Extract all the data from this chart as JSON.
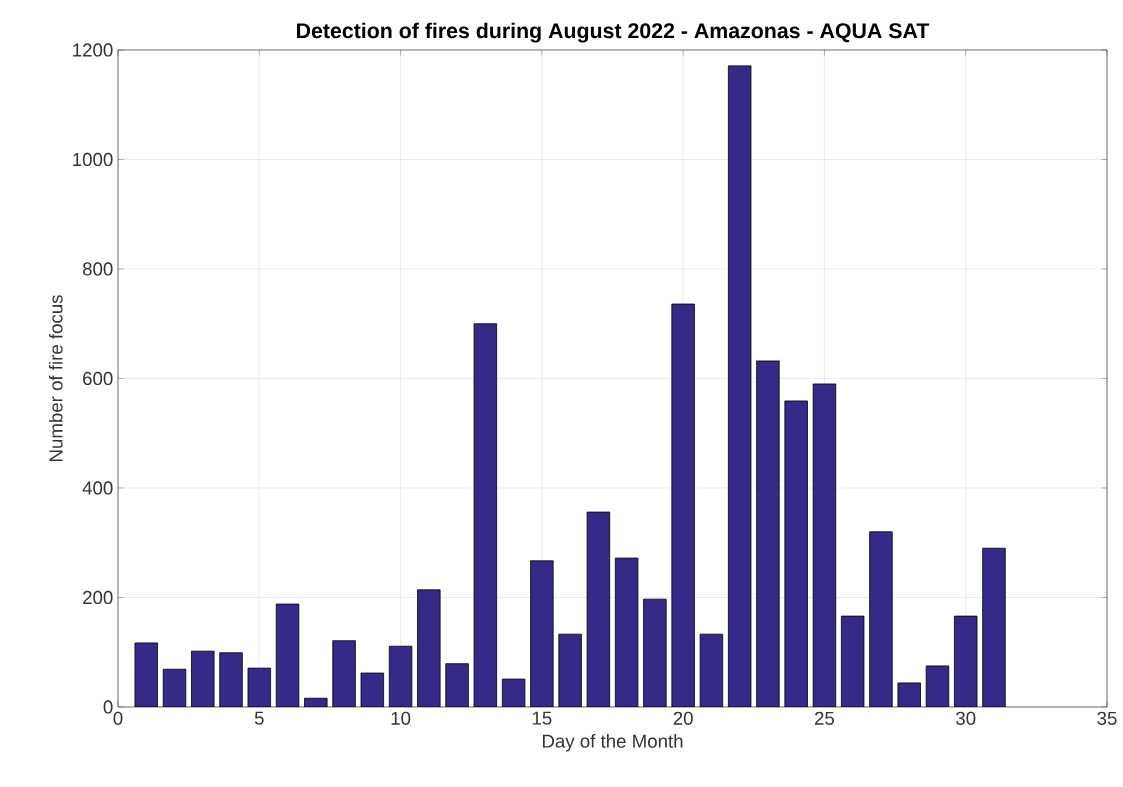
{
  "chart_data": {
    "type": "bar",
    "title": "Detection of fires during August 2022 - Amazonas - AQUA SAT",
    "xlabel": "Day of the Month",
    "ylabel": "Number of fire focus",
    "x": [
      1,
      2,
      3,
      4,
      5,
      6,
      7,
      8,
      9,
      10,
      11,
      12,
      13,
      14,
      15,
      16,
      17,
      18,
      19,
      20,
      21,
      22,
      23,
      24,
      25,
      26,
      27,
      28,
      29,
      30,
      31
    ],
    "values": [
      117,
      69,
      102,
      99,
      71,
      188,
      16,
      121,
      62,
      111,
      214,
      79,
      700,
      51,
      267,
      133,
      356,
      272,
      197,
      736,
      133,
      1171,
      632,
      559,
      590,
      166,
      320,
      44,
      75,
      166,
      290
    ],
    "color": "#352a87",
    "xlim": [
      0,
      35
    ],
    "xticks": [
      0,
      5,
      10,
      15,
      20,
      25,
      30,
      35
    ],
    "ylim": [
      0,
      1200
    ],
    "yticks": [
      0,
      200,
      400,
      600,
      800,
      1000,
      1200
    ],
    "grid": true
  }
}
